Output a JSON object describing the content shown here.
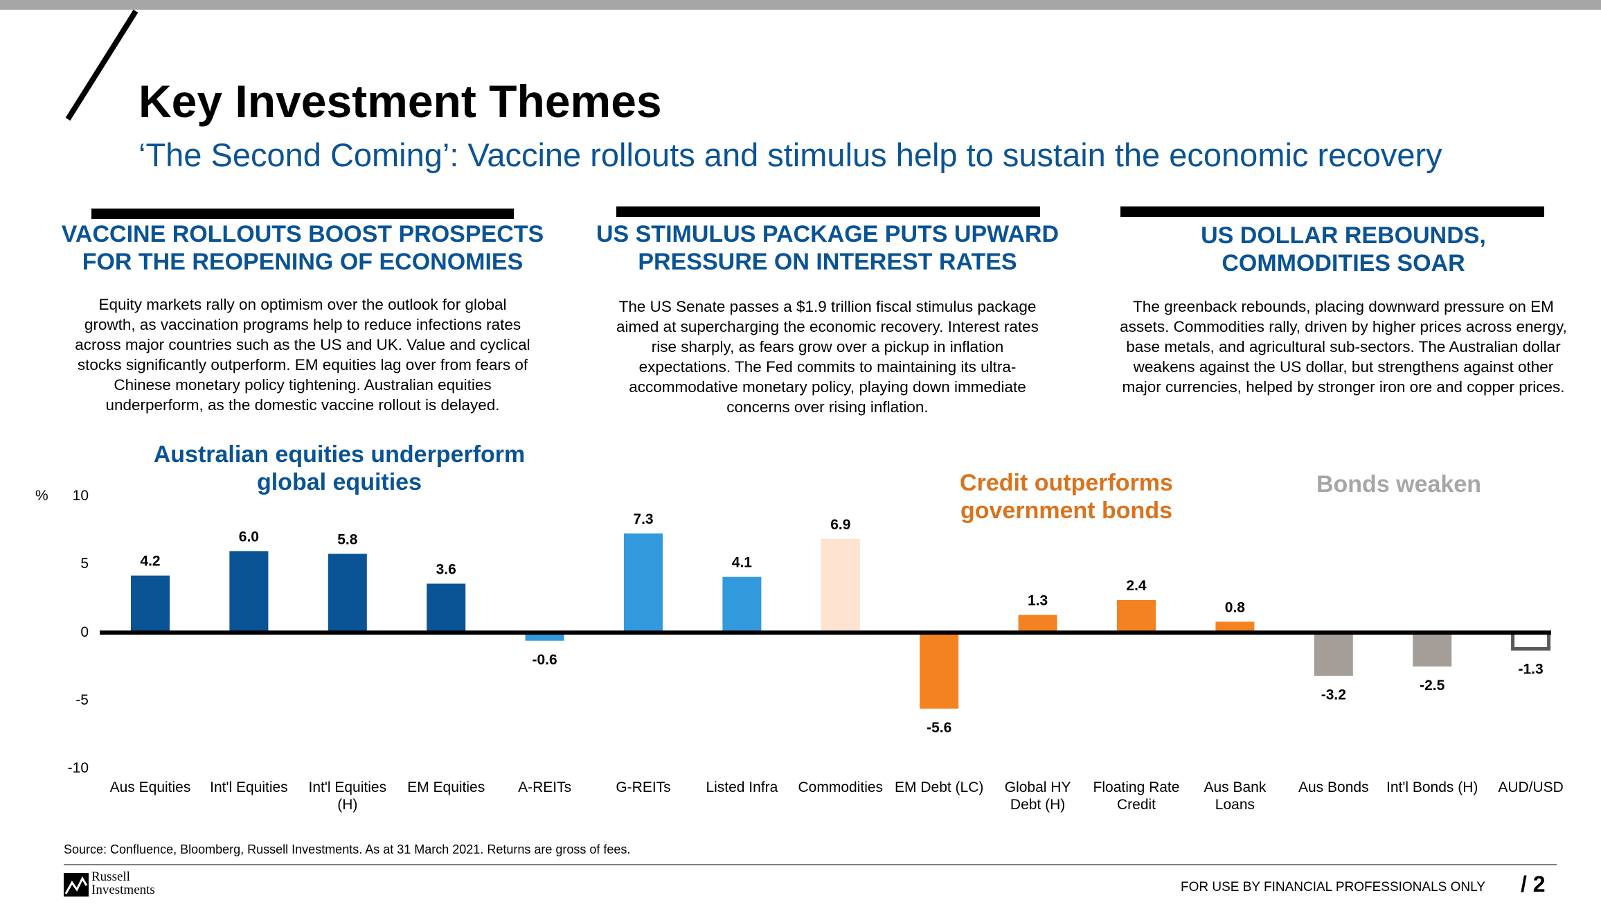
{
  "header": {
    "title": "Key Investment Themes",
    "subtitle": "‘The Second Coming’: Vaccine rollouts and stimulus help to sustain the economic recovery"
  },
  "columns": [
    {
      "heading_line1": "VACCINE ROLLOUTS BOOST PROSPECTS",
      "heading_line2": "FOR THE REOPENING OF ECONOMIES",
      "body": [
        "Equity markets rally on optimism over the outlook for global",
        "growth, as vaccination programs help to reduce infections rates",
        "across major countries such as the US and UK. Value and cyclical",
        "stocks significantly outperform. EM equities lag over from fears of",
        "Chinese monetary policy tightening. Australian equities",
        "underperform, as the domestic vaccine rollout is delayed."
      ]
    },
    {
      "heading_line1": "US STIMULUS PACKAGE PUTS UPWARD",
      "heading_line2": "PRESSURE ON INTEREST RATES",
      "body": [
        "The US Senate passes a $1.9 trillion fiscal stimulus package",
        "aimed at supercharging the economic recovery. Interest rates",
        "rise sharply, as fears grow over a pickup in inflation",
        "expectations. The Fed commits to maintaining its ultra-",
        "accommodative monetary policy, playing down immediate",
        "concerns over rising inflation."
      ]
    },
    {
      "heading_line1": "US DOLLAR REBOUNDS,",
      "heading_line2": "COMMODITIES SOAR",
      "body": [
        "The greenback rebounds, placing downward pressure on EM",
        "assets. Commodities rally, driven by higher prices across energy,",
        "base metals, and agricultural sub-sectors. The Australian dollar",
        "weakens against the US dollar, but strengthens against other",
        "major currencies, helped by stronger iron ore and copper prices."
      ]
    }
  ],
  "category_headings": {
    "equities_line1": "Australian equities underperform",
    "equities_line2": "global equities",
    "credit_line1": "Credit outperforms",
    "credit_line2": "government bonds",
    "bonds": "Bonds weaken"
  },
  "colors": {
    "dark_blue": "#0a5394",
    "light_blue": "#3399dd",
    "peach": "#fde3d0",
    "orange": "#f58220",
    "grey": "#a59e98",
    "heading_blue": "#0a5394",
    "heading_orange": "#d9731e",
    "heading_grey": "#a6a6a6"
  },
  "chart_data": {
    "type": "bar",
    "ylabel": "%",
    "ylim": [
      -10,
      10
    ],
    "yticks": [
      "10",
      "5",
      "0",
      "-5",
      "-10"
    ],
    "grid": false,
    "categories": [
      [
        "Aus Equities"
      ],
      [
        "Int'l Equities"
      ],
      [
        "Int'l Equities",
        "(H)"
      ],
      [
        "EM Equities"
      ],
      [
        "A-REITs"
      ],
      [
        "G-REITs"
      ],
      [
        "Listed Infra"
      ],
      [
        "Commodities"
      ],
      [
        "EM Debt (LC)"
      ],
      [
        "Global HY",
        "Debt (H)"
      ],
      [
        "Floating Rate",
        "Credit"
      ],
      [
        "Aus Bank",
        "Loans"
      ],
      [
        "Aus Bonds"
      ],
      [
        "Int'l Bonds (H)"
      ],
      [
        "AUD/USD"
      ]
    ],
    "values": [
      4.2,
      6.0,
      5.8,
      3.6,
      -0.6,
      7.3,
      4.1,
      6.9,
      -5.6,
      1.3,
      2.4,
      0.8,
      -3.2,
      -2.5,
      -1.3
    ],
    "value_labels": [
      "4.2",
      "6.0",
      "5.8",
      "3.6",
      "-0.6",
      "7.3",
      "4.1",
      "6.9",
      "-5.6",
      "1.3",
      "2.4",
      "0.8",
      "-3.2",
      "-2.5",
      "-1.3"
    ],
    "bar_colors": [
      "dark_blue",
      "dark_blue",
      "dark_blue",
      "dark_blue",
      "light_blue",
      "light_blue",
      "light_blue",
      "peach",
      "orange",
      "orange",
      "orange",
      "orange",
      "grey",
      "grey",
      "outline"
    ]
  },
  "footer": {
    "source": "Source: Confluence, Bloomberg, Russell Investments. As at 31 March 2021. Returns are gross of fees.",
    "logo_line1": "Russell",
    "logo_line2": "Investments",
    "note": "FOR USE BY FINANCIAL PROFESSIONALS ONLY",
    "page": "/  2"
  }
}
